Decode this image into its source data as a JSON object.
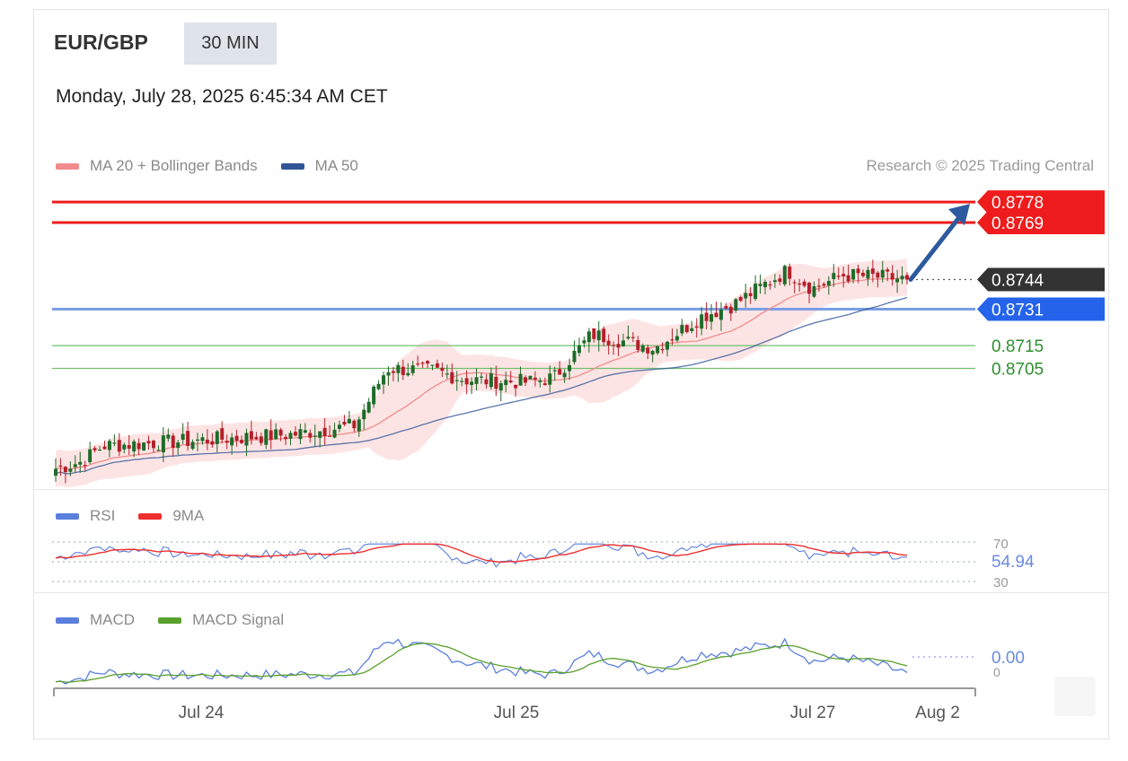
{
  "header": {
    "symbol": "EUR/GBP",
    "timeframe": "30 MIN",
    "datetime": "Monday, July 28, 2025 6:45:34 AM CET"
  },
  "credit": "Research © 2025 Trading Central",
  "legends": {
    "price": [
      {
        "label": "MA 20 + Bollinger Bands",
        "color": "#f28b8b"
      },
      {
        "label": "MA 50",
        "color": "#2f5597"
      }
    ],
    "rsi": [
      {
        "label": "RSI",
        "color": "#5b7fdc"
      },
      {
        "label": "9MA",
        "color": "#ef2e2e"
      }
    ],
    "macd": [
      {
        "label": "MACD",
        "color": "#5b7fdc"
      },
      {
        "label": "MACD Signal",
        "color": "#5aa02c"
      }
    ]
  },
  "colors": {
    "up": "#1f6b2a",
    "down": "#b3202a",
    "resistance": "#ee1c1c",
    "support_blue": "#7a9ee6",
    "support_green": "#6fbf6f",
    "band_fill": "#fde4e4",
    "arrow": "#2d5a9e"
  },
  "chart_data": [
    {
      "type": "candlestick",
      "title": "EUR/GBP 30 MIN",
      "y_axis_range": [
        0.8654,
        0.8782
      ],
      "x_tick_labels": [
        "Jul 24",
        "Jul 25",
        "Jul 27",
        "Aug 2"
      ],
      "candle_count": 175,
      "last_price": 0.8744,
      "levels": [
        {
          "label": "0.8778",
          "value": 0.8778,
          "kind": "resistance"
        },
        {
          "label": "0.8769",
          "value": 0.8769,
          "kind": "resistance"
        },
        {
          "label": "0.8744",
          "value": 0.8744,
          "kind": "last"
        },
        {
          "label": "0.8731",
          "value": 0.8731,
          "kind": "support"
        },
        {
          "label": "0.8715",
          "value": 0.8715,
          "kind": "pivot"
        },
        {
          "label": "0.8705",
          "value": 0.8705,
          "kind": "pivot"
        }
      ],
      "trend_anchors": [
        {
          "bar": 0,
          "price": 0.8661
        },
        {
          "bar": 8,
          "price": 0.8664
        },
        {
          "bar": 15,
          "price": 0.8671
        },
        {
          "bar": 40,
          "price": 0.8673
        },
        {
          "bar": 75,
          "price": 0.8676
        },
        {
          "bar": 95,
          "price": 0.868
        },
        {
          "bar": 105,
          "price": 0.8705
        },
        {
          "bar": 120,
          "price": 0.8704
        },
        {
          "bar": 130,
          "price": 0.87
        },
        {
          "bar": 150,
          "price": 0.8699
        },
        {
          "bar": 158,
          "price": 0.8701
        },
        {
          "bar": 170,
          "price": 0.872
        },
        {
          "bar": 190,
          "price": 0.8714
        },
        {
          "bar": 205,
          "price": 0.8728
        },
        {
          "bar": 215,
          "price": 0.8733
        },
        {
          "bar": 225,
          "price": 0.8742
        },
        {
          "bar": 232,
          "price": 0.8748
        },
        {
          "bar": 240,
          "price": 0.874
        },
        {
          "bar": 250,
          "price": 0.8746
        },
        {
          "bar": 262,
          "price": 0.8745
        },
        {
          "bar": 270,
          "price": 0.8744
        }
      ],
      "forecast_arrow": {
        "from": 0.8744,
        "to": 0.8778
      }
    },
    {
      "type": "line",
      "title": "RSI",
      "series": [
        "RSI",
        "9MA"
      ],
      "levels": [
        70,
        30
      ],
      "current_value_label": "54.94",
      "level_labels": [
        "70",
        "30"
      ]
    },
    {
      "type": "line",
      "title": "MACD",
      "series": [
        "MACD",
        "MACD Signal"
      ],
      "current_value_label": "0.00",
      "zero_label": "0"
    }
  ]
}
